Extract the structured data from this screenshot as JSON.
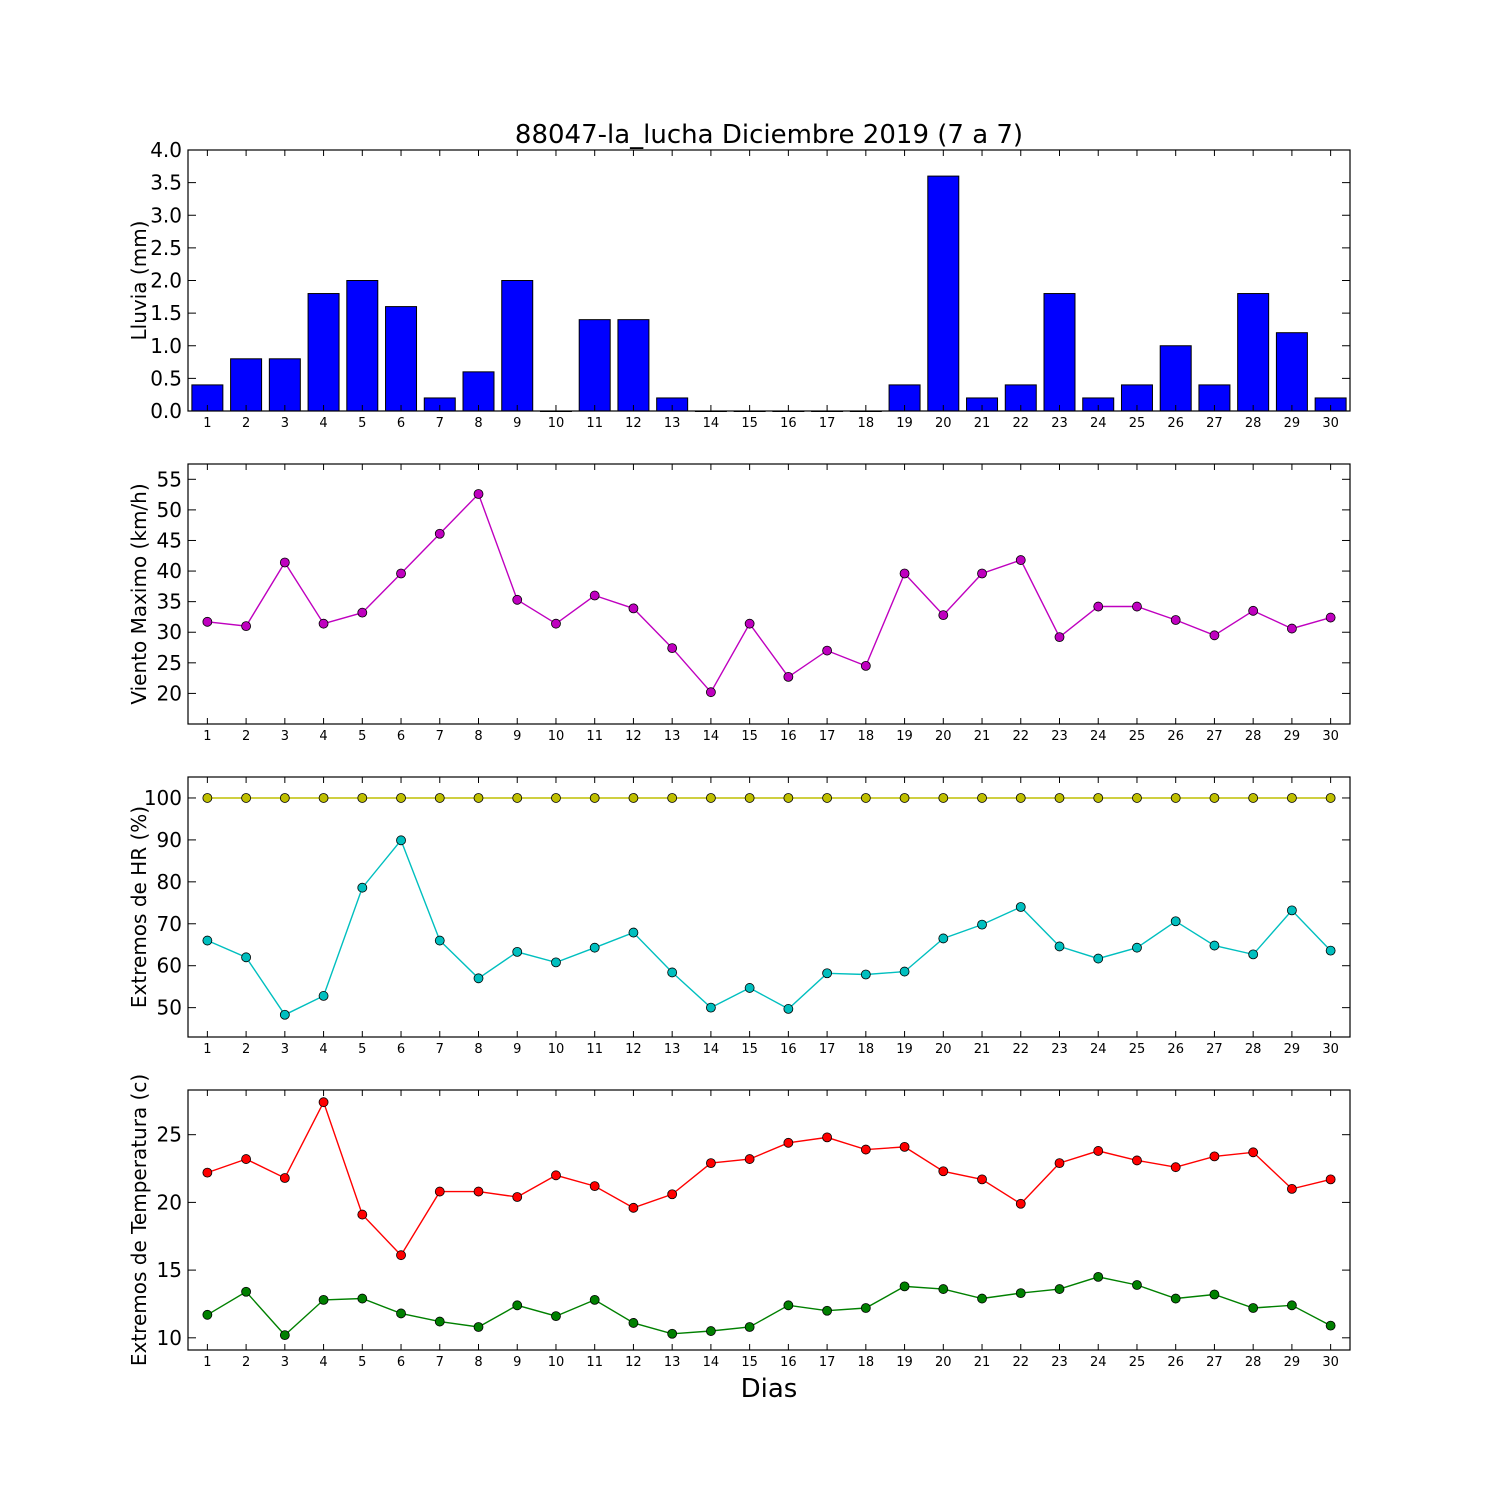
{
  "figure": {
    "title": "88047-la_lucha Diciembre 2019  (7 a 7)",
    "xlabel": "Dias"
  },
  "chart_data": [
    {
      "id": "lluvia",
      "type": "bar",
      "ylabel": "Lluvia (mm)",
      "ylim": [
        0,
        4
      ],
      "yticks": [
        0,
        0.5,
        1,
        1.5,
        2,
        2.5,
        3,
        3.5,
        4
      ],
      "ytick_labels": [
        "0.0",
        "0.5",
        "1.0",
        "1.5",
        "2.0",
        "2.5",
        "3.0",
        "3.5",
        "4.0"
      ],
      "x": [
        1,
        2,
        3,
        4,
        5,
        6,
        7,
        8,
        9,
        10,
        11,
        12,
        13,
        14,
        15,
        16,
        17,
        18,
        19,
        20,
        21,
        22,
        23,
        24,
        25,
        26,
        27,
        28,
        29,
        30
      ],
      "grid": false,
      "series": [
        {
          "color": "#0000ff",
          "values": [
            0.4,
            0.8,
            0.8,
            1.8,
            2.0,
            1.6,
            0.2,
            0.6,
            2.0,
            0.0,
            1.4,
            1.4,
            0.2,
            0.0,
            0.0,
            0.0,
            0.0,
            0.0,
            0.4,
            3.6,
            0.2,
            0.4,
            1.8,
            0.2,
            0.4,
            1.0,
            0.4,
            1.8,
            1.2,
            0.2
          ]
        }
      ]
    },
    {
      "id": "viento",
      "type": "line",
      "ylabel": "Viento Maximo (km/h)",
      "ylim": [
        15,
        57.5
      ],
      "yticks": [
        20,
        25,
        30,
        35,
        40,
        45,
        50,
        55
      ],
      "ytick_labels": [
        "20",
        "25",
        "30",
        "35",
        "40",
        "45",
        "50",
        "55"
      ],
      "x": [
        1,
        2,
        3,
        4,
        5,
        6,
        7,
        8,
        9,
        10,
        11,
        12,
        13,
        14,
        15,
        16,
        17,
        18,
        19,
        20,
        21,
        22,
        23,
        24,
        25,
        26,
        27,
        28,
        29,
        30
      ],
      "grid": false,
      "series": [
        {
          "color": "#bf00bf",
          "values": [
            31.7,
            31.0,
            41.4,
            31.4,
            33.2,
            39.6,
            46.1,
            52.6,
            35.3,
            31.4,
            36.0,
            33.9,
            27.4,
            20.2,
            31.4,
            22.7,
            27.0,
            24.5,
            39.6,
            32.8,
            39.6,
            41.8,
            29.2,
            34.2,
            34.2,
            32.0,
            29.5,
            33.5,
            30.6,
            32.4
          ]
        }
      ]
    },
    {
      "id": "hr",
      "type": "line",
      "ylabel": "Extremos de HR (%)",
      "ylim": [
        43,
        105
      ],
      "yticks": [
        50,
        60,
        70,
        80,
        90,
        100
      ],
      "ytick_labels": [
        "50",
        "60",
        "70",
        "80",
        "90",
        "100"
      ],
      "x": [
        1,
        2,
        3,
        4,
        5,
        6,
        7,
        8,
        9,
        10,
        11,
        12,
        13,
        14,
        15,
        16,
        17,
        18,
        19,
        20,
        21,
        22,
        23,
        24,
        25,
        26,
        27,
        28,
        29,
        30
      ],
      "grid": false,
      "series": [
        {
          "color": "#bfbf00",
          "values": [
            100,
            100,
            100,
            100,
            100,
            100,
            100,
            100,
            100,
            100,
            100,
            100,
            100,
            100,
            100,
            100,
            100,
            100,
            100,
            100,
            100,
            100,
            100,
            100,
            100,
            100,
            100,
            100,
            100,
            100
          ]
        },
        {
          "color": "#00bfbf",
          "values": [
            66,
            62,
            48.3,
            52.8,
            78.6,
            89.9,
            66,
            57,
            63.3,
            60.8,
            64.3,
            67.9,
            58.4,
            50,
            54.7,
            49.7,
            58.2,
            57.9,
            58.6,
            66.5,
            69.8,
            74,
            64.6,
            61.7,
            64.3,
            70.6,
            64.8,
            62.7,
            73.2,
            63.6
          ]
        }
      ]
    },
    {
      "id": "temperatura",
      "type": "line",
      "ylabel": "Extremos de Temperatura (c)",
      "ylim": [
        9.1,
        28.3
      ],
      "yticks": [
        10,
        15,
        20,
        25
      ],
      "ytick_labels": [
        "10",
        "15",
        "20",
        "25"
      ],
      "x": [
        1,
        2,
        3,
        4,
        5,
        6,
        7,
        8,
        9,
        10,
        11,
        12,
        13,
        14,
        15,
        16,
        17,
        18,
        19,
        20,
        21,
        22,
        23,
        24,
        25,
        26,
        27,
        28,
        29,
        30
      ],
      "grid": false,
      "series": [
        {
          "color": "#ff0000",
          "values": [
            22.2,
            23.2,
            21.8,
            27.4,
            19.1,
            16.1,
            20.8,
            20.8,
            20.4,
            22.0,
            21.2,
            19.6,
            20.6,
            22.9,
            23.2,
            24.4,
            24.8,
            23.9,
            24.1,
            22.3,
            21.7,
            19.9,
            22.9,
            23.8,
            23.1,
            22.6,
            23.4,
            23.7,
            21.0,
            21.7
          ]
        },
        {
          "color": "#008000",
          "values": [
            11.7,
            13.4,
            10.2,
            12.8,
            12.9,
            11.8,
            11.2,
            10.8,
            12.4,
            11.6,
            12.8,
            11.1,
            10.3,
            10.5,
            10.8,
            12.4,
            12.0,
            12.2,
            13.8,
            13.6,
            12.9,
            13.3,
            13.6,
            14.5,
            13.9,
            12.9,
            13.2,
            12.2,
            12.4,
            10.9
          ]
        }
      ]
    }
  ]
}
